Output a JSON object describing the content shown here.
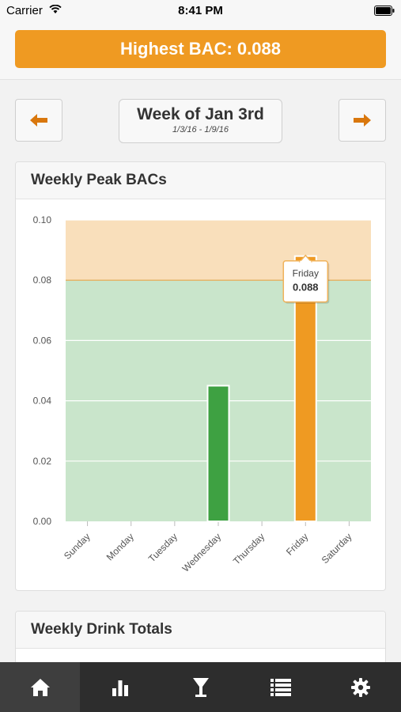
{
  "status_bar": {
    "carrier": "Carrier",
    "time": "8:41 PM"
  },
  "banner": {
    "text": "Highest BAC: 0.088"
  },
  "week_nav": {
    "title": "Week of Jan 3rd",
    "range": "1/3/16 - 1/9/16",
    "prev_icon": "arrow-left-icon",
    "next_icon": "arrow-right-icon"
  },
  "peak_card": {
    "title": "Weekly Peak BACs"
  },
  "totals_card": {
    "title": "Weekly Drink Totals"
  },
  "tooltip": {
    "label": "Friday",
    "value": "0.088"
  },
  "tabs": [
    {
      "icon": "home-icon",
      "active": true
    },
    {
      "icon": "bar-chart-icon",
      "active": false
    },
    {
      "icon": "cocktail-glass-icon",
      "active": false
    },
    {
      "icon": "list-icon",
      "active": false
    },
    {
      "icon": "gear-icon",
      "active": false
    }
  ],
  "colors": {
    "accent": "#ef9a22",
    "safe_zone": "#c9e5cb",
    "warn_zone": "#f9dfbb",
    "normal_bar": "#3ea142",
    "peak_bar": "#ef9a22"
  },
  "chart_data": {
    "type": "bar",
    "categories": [
      "Sunday",
      "Monday",
      "Tuesday",
      "Wednesday",
      "Thursday",
      "Friday",
      "Saturday"
    ],
    "values": [
      0,
      0,
      0,
      0.045,
      0,
      0.088,
      0
    ],
    "ylim": [
      0,
      0.1
    ],
    "yticks": [
      "0.00",
      "0.02",
      "0.04",
      "0.06",
      "0.08",
      "0.10"
    ],
    "threshold": 0.08,
    "grid": true,
    "highlight": "Friday"
  }
}
